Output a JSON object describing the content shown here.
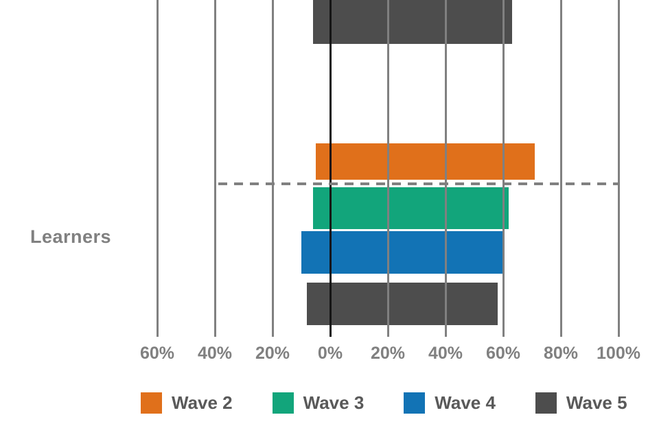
{
  "chart_data": {
    "type": "bar",
    "orientation": "horizontal",
    "diverging": true,
    "title": "",
    "xlabel": "",
    "ylabel": "",
    "group_label": "Learners",
    "x_axis": {
      "tick_labels": [
        "60%",
        "40%",
        "20%",
        "0%",
        "20%",
        "40%",
        "60%",
        "80%",
        "100%"
      ],
      "tick_values": [
        -60,
        -40,
        -20,
        0,
        20,
        40,
        60,
        80,
        100
      ],
      "range": [
        -60,
        100
      ],
      "unit": "%"
    },
    "grid": true,
    "gridline_color": "#808080",
    "axis_color": "#141414",
    "tick_label_color": "#808080",
    "group_label_color": "#808080",
    "legend_label_color": "#595959",
    "background": "#FFFFFF",
    "legend_position": "bottom",
    "legend": [
      {
        "label": "Wave 2",
        "color": "#E0701B"
      },
      {
        "label": "Wave 3",
        "color": "#12A57B"
      },
      {
        "label": "Wave 4",
        "color": "#1273B5"
      },
      {
        "label": "Wave 5",
        "color": "#4D4D4D"
      }
    ],
    "bars": [
      {
        "group": "",
        "series": "Wave 5",
        "color": "#4D4D4D",
        "start": -6,
        "end": 63,
        "partially_visible": true
      },
      {
        "group": "Learners",
        "series": "Wave 2",
        "color": "#E0701B",
        "start": -5,
        "end": 71
      },
      {
        "group": "Learners",
        "series": "Wave 3",
        "color": "#12A57B",
        "start": -6,
        "end": 62
      },
      {
        "group": "Learners",
        "series": "Wave 4",
        "color": "#1273B5",
        "start": -10,
        "end": 60
      },
      {
        "group": "Learners",
        "series": "Wave 5",
        "color": "#4D4D4D",
        "start": -8,
        "end": 58
      }
    ],
    "separator_line": {
      "style": "dashed",
      "color": "#808080"
    }
  }
}
